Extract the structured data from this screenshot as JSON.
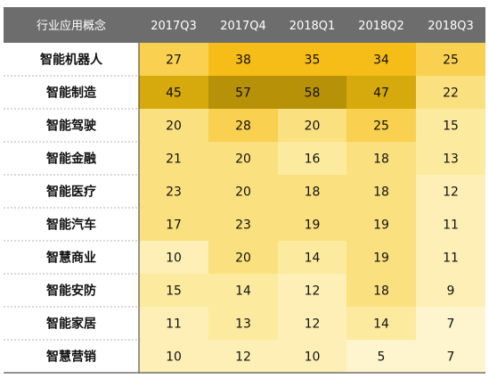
{
  "chart_data": {
    "type": "heatmap",
    "corner_label": "行业应用概念",
    "columns": [
      "2017Q3",
      "2017Q4",
      "2018Q1",
      "2018Q2",
      "2018Q3"
    ],
    "rows": [
      "智能机器人",
      "智能制造",
      "智能驾驶",
      "智能金融",
      "智能医疗",
      "智能汽车",
      "智慧商业",
      "智能安防",
      "智能家居",
      "智慧营销"
    ],
    "values": [
      [
        27,
        38,
        35,
        34,
        25
      ],
      [
        45,
        57,
        58,
        47,
        22
      ],
      [
        20,
        28,
        20,
        25,
        15
      ],
      [
        21,
        20,
        16,
        18,
        13
      ],
      [
        23,
        20,
        18,
        18,
        12
      ],
      [
        17,
        23,
        19,
        19,
        11
      ],
      [
        10,
        20,
        14,
        19,
        11
      ],
      [
        15,
        14,
        12,
        18,
        9
      ],
      [
        11,
        13,
        12,
        14,
        7
      ],
      [
        10,
        12,
        10,
        5,
        7
      ]
    ],
    "colors": {
      "header_bg": "#6d6d6d",
      "header_text": "#ffffff",
      "row_label_bg": "#ffffff",
      "text": "#111111",
      "border": "#555555"
    }
  }
}
